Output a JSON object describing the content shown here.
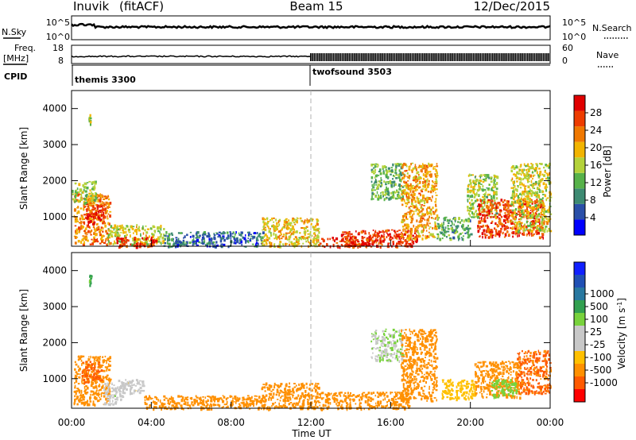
{
  "header": {
    "station": "Inuvik",
    "mode": "(fitACF)",
    "beam": "Beam 15",
    "date": "12/Dec/2015"
  },
  "top_panels": {
    "nsky_label": "N.Sky",
    "nsearch_label": "N.Search",
    "noise_tick_hi": "10^5",
    "noise_tick_lo": "10^0",
    "freq_label_1": "Freq.",
    "freq_label_2": "[MHz]",
    "freq_tick_hi": "18",
    "freq_tick_lo": "8",
    "nave_label": "Nave",
    "nave_tick_hi": "60",
    "nave_tick_lo": "0",
    "cpid_label": "CPID",
    "cpid_1": "themis 3300",
    "cpid_2": "twofsound 3503"
  },
  "colors": {
    "power_scale": [
      "#0000ff",
      "#2a4fa8",
      "#3d8a72",
      "#57b24a",
      "#b4d23a",
      "#f2b400",
      "#f07800",
      "#ee3c00",
      "#e00000"
    ],
    "velocity_scale": [
      "#ff0000",
      "#ff5a00",
      "#ff9000",
      "#ffc000",
      "#c8c8c8",
      "#c8c8c8",
      "#78d23c",
      "#32a050",
      "#2878a0",
      "#2050b4",
      "#1020ff"
    ]
  },
  "chart_data": [
    {
      "type": "heatmap",
      "panel": "power",
      "xlabel": "",
      "ylabel": "Slant Range [km]",
      "xlim": [
        0,
        24
      ],
      "ylim": [
        180,
        4500
      ],
      "yticks": [
        1000,
        2000,
        3000,
        4000
      ],
      "colorbar_label": "Power [dB]",
      "colorbar_ticks": [
        "4",
        "8",
        "12",
        "16",
        "20",
        "24",
        "28"
      ],
      "colorbar_range": [
        0,
        30
      ],
      "regions": [
        {
          "t0": 0.1,
          "t1": 1.9,
          "r0": 250,
          "r1": 1650,
          "level": 22
        },
        {
          "t0": 0.7,
          "t1": 1.6,
          "r0": 800,
          "r1": 1400,
          "level": 28
        },
        {
          "t0": 0.0,
          "t1": 1.2,
          "r0": 1400,
          "r1": 2000,
          "level": 14
        },
        {
          "t0": 0.85,
          "t1": 0.95,
          "r0": 3600,
          "r1": 3900,
          "level": 14
        },
        {
          "t0": 1.8,
          "t1": 4.6,
          "r0": 250,
          "r1": 800,
          "level": 16
        },
        {
          "t0": 2.2,
          "t1": 4.2,
          "r0": 180,
          "r1": 450,
          "level": 28
        },
        {
          "t0": 4.6,
          "t1": 9.6,
          "r0": 180,
          "r1": 600,
          "level": 6
        },
        {
          "t0": 9.5,
          "t1": 12.4,
          "r0": 180,
          "r1": 1000,
          "level": 18
        },
        {
          "t0": 12.4,
          "t1": 15.5,
          "r0": 180,
          "r1": 450,
          "level": 26
        },
        {
          "t0": 13.5,
          "t1": 17.3,
          "r0": 200,
          "r1": 650,
          "level": 28
        },
        {
          "t0": 15.0,
          "t1": 16.6,
          "r0": 1500,
          "r1": 2500,
          "level": 12
        },
        {
          "t0": 16.5,
          "t1": 18.3,
          "r0": 400,
          "r1": 2500,
          "level": 20
        },
        {
          "t0": 18.3,
          "t1": 20.0,
          "r0": 400,
          "r1": 1000,
          "level": 10
        },
        {
          "t0": 19.8,
          "t1": 21.3,
          "r0": 1000,
          "r1": 2200,
          "level": 14
        },
        {
          "t0": 20.3,
          "t1": 23.7,
          "r0": 450,
          "r1": 1500,
          "level": 26
        },
        {
          "t0": 22.0,
          "t1": 24.0,
          "r0": 600,
          "r1": 2500,
          "level": 16
        }
      ]
    },
    {
      "type": "heatmap",
      "panel": "velocity",
      "xlabel": "Time UT",
      "ylabel": "Slant Range [km]",
      "xlim": [
        0,
        24
      ],
      "ylim": [
        180,
        4500
      ],
      "yticks": [
        1000,
        2000,
        3000,
        4000
      ],
      "xticks": [
        "00:00",
        "04:00",
        "08:00",
        "12:00",
        "16:00",
        "20:00",
        "00:00"
      ],
      "colorbar_label": "Velocity [m s^-1]",
      "colorbar_ticks": [
        "-1000",
        "-500",
        "-100",
        "-25",
        "25",
        "100",
        "500",
        "1000"
      ],
      "regions": [
        {
          "t0": 0.1,
          "t1": 1.9,
          "r0": 300,
          "r1": 1650,
          "level": -300
        },
        {
          "t0": 0.5,
          "t1": 1.5,
          "r0": 900,
          "r1": 1500,
          "level": -700
        },
        {
          "t0": 0.85,
          "t1": 0.95,
          "r0": 3600,
          "r1": 3900,
          "level": 600
        },
        {
          "t0": 1.6,
          "t1": 2.6,
          "r0": 300,
          "r1": 900,
          "level": 50
        },
        {
          "t0": 2.3,
          "t1": 3.6,
          "r0": 600,
          "r1": 1000,
          "level": 0
        },
        {
          "t0": 3.6,
          "t1": 9.5,
          "r0": 180,
          "r1": 550,
          "level": -200
        },
        {
          "t0": 9.5,
          "t1": 12.4,
          "r0": 180,
          "r1": 900,
          "level": -150
        },
        {
          "t0": 12.4,
          "t1": 17.0,
          "r0": 180,
          "r1": 650,
          "level": -150
        },
        {
          "t0": 15.0,
          "t1": 16.6,
          "r0": 1500,
          "r1": 2400,
          "level": 80
        },
        {
          "t0": 16.5,
          "t1": 18.3,
          "r0": 400,
          "r1": 2400,
          "level": -300
        },
        {
          "t0": 18.5,
          "t1": 20.2,
          "r0": 450,
          "r1": 1000,
          "level": -60
        },
        {
          "t0": 20.2,
          "t1": 22.5,
          "r0": 500,
          "r1": 1500,
          "level": -350
        },
        {
          "t0": 21.0,
          "t1": 22.3,
          "r0": 500,
          "r1": 1000,
          "level": 300
        },
        {
          "t0": 22.3,
          "t1": 24.0,
          "r0": 600,
          "r1": 1800,
          "level": -600
        }
      ]
    }
  ]
}
